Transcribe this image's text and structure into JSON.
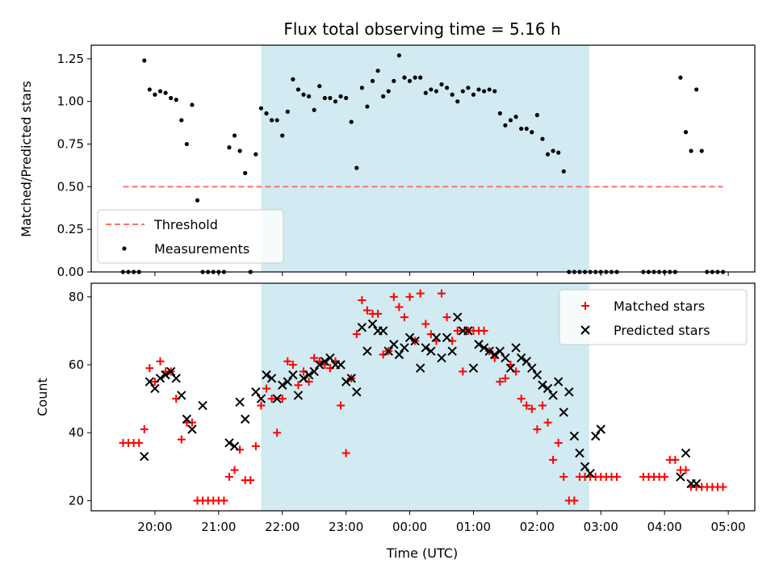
{
  "figure": {
    "title": "Flux total observing time = 5.16 h",
    "xlabel": "Time (UTC)",
    "x_ticks": [
      "20:00",
      "21:00",
      "22:00",
      "23:00",
      "00:00",
      "01:00",
      "02:00",
      "03:00",
      "04:00",
      "05:00"
    ]
  },
  "chart_data": [
    {
      "type": "scatter",
      "panel": "top",
      "ylabel": "Matched/Predicted stars",
      "ylim": [
        0,
        1.33
      ],
      "y_ticks": [
        "0.00",
        "0.25",
        "0.50",
        "0.75",
        "1.00",
        "1.25"
      ],
      "xlim": [
        "19:00",
        "05:25"
      ],
      "observing_window": {
        "start": "21:40",
        "end": "02:49",
        "color": "#add8e6"
      },
      "legend": {
        "placement": "lower-left",
        "entries": [
          "Threshold",
          "Measurements"
        ]
      },
      "threshold": {
        "name": "Threshold",
        "value": 0.5,
        "x_range": [
          "19:30",
          "04:55"
        ],
        "color": "#ff6f6f",
        "style": "dashed"
      },
      "series": [
        {
          "name": "Measurements",
          "color": "#000000",
          "x": [
            "19:30",
            "19:35",
            "19:40",
            "19:45",
            "19:50",
            "19:55",
            "20:00",
            "20:05",
            "20:10",
            "20:15",
            "20:20",
            "20:25",
            "20:30",
            "20:35",
            "20:40",
            "20:45",
            "20:50",
            "20:55",
            "21:00",
            "21:05",
            "21:10",
            "21:15",
            "21:20",
            "21:25",
            "21:30",
            "21:35",
            "21:40",
            "21:45",
            "21:50",
            "21:55",
            "22:00",
            "22:05",
            "22:10",
            "22:15",
            "22:20",
            "22:25",
            "22:30",
            "22:35",
            "22:40",
            "22:45",
            "22:50",
            "22:55",
            "23:00",
            "23:05",
            "23:10",
            "23:15",
            "23:20",
            "23:25",
            "23:30",
            "23:35",
            "23:40",
            "23:45",
            "23:50",
            "23:55",
            "00:00",
            "00:05",
            "00:10",
            "00:15",
            "00:20",
            "00:25",
            "00:30",
            "00:35",
            "00:40",
            "00:45",
            "00:50",
            "00:55",
            "01:00",
            "01:05",
            "01:10",
            "01:15",
            "01:20",
            "01:25",
            "01:30",
            "01:35",
            "01:40",
            "01:45",
            "01:50",
            "01:55",
            "02:00",
            "02:05",
            "02:10",
            "02:15",
            "02:20",
            "02:25",
            "02:30",
            "02:35",
            "02:40",
            "02:45",
            "02:50",
            "02:55",
            "03:00",
            "03:05",
            "03:10",
            "03:15",
            "03:40",
            "03:45",
            "03:50",
            "03:55",
            "04:00",
            "04:05",
            "04:10",
            "04:15",
            "04:20",
            "04:25",
            "04:30",
            "04:35",
            "04:40",
            "04:45",
            "04:50",
            "04:55"
          ],
          "y": [
            0,
            0,
            0,
            0,
            1.24,
            1.07,
            1.04,
            1.06,
            1.05,
            1.02,
            1.01,
            0.89,
            0.75,
            0.98,
            0.42,
            0,
            0,
            0,
            0,
            0,
            0.73,
            0.8,
            0.71,
            0.58,
            0,
            0.69,
            0.96,
            0.93,
            0.89,
            0.89,
            0.8,
            0.94,
            1.13,
            1.07,
            1.04,
            1.03,
            0.95,
            1.09,
            1.02,
            1.02,
            1.0,
            1.03,
            1.02,
            0.88,
            0.61,
            1.08,
            0.97,
            1.12,
            1.18,
            1.03,
            1.06,
            1.12,
            1.27,
            1.14,
            1.12,
            1.14,
            1.14,
            1.05,
            1.07,
            1.06,
            1.1,
            1.08,
            1.04,
            1.0,
            1.06,
            1.08,
            1.04,
            1.07,
            1.06,
            1.07,
            1.06,
            0.93,
            0.86,
            0.89,
            0.91,
            0.84,
            0.84,
            0.82,
            0.92,
            0.78,
            0.69,
            0.71,
            0.7,
            0.59,
            0,
            0,
            0,
            0,
            0,
            0,
            0,
            0,
            0,
            0,
            0,
            0,
            0,
            0,
            0,
            0,
            0,
            1.14,
            0.82,
            0.71,
            1.07,
            0.71,
            0,
            0,
            0,
            0
          ]
        }
      ]
    },
    {
      "type": "scatter",
      "panel": "bottom",
      "ylabel": "Count",
      "ylim": [
        17,
        84
      ],
      "y_ticks": [
        "20",
        "40",
        "60",
        "80"
      ],
      "xlim": [
        "19:00",
        "05:25"
      ],
      "observing_window": {
        "start": "21:40",
        "end": "02:49",
        "color": "#add8e6"
      },
      "legend": {
        "placement": "upper-right",
        "entries": [
          "Matched stars",
          "Predicted stars"
        ]
      },
      "series": [
        {
          "name": "Matched stars",
          "marker": "plus",
          "color": "#ff0000",
          "x": [
            "19:30",
            "19:35",
            "19:40",
            "19:45",
            "19:50",
            "19:55",
            "20:00",
            "20:05",
            "20:10",
            "20:15",
            "20:20",
            "20:25",
            "20:30",
            "20:35",
            "20:40",
            "20:45",
            "20:50",
            "20:55",
            "21:00",
            "21:05",
            "21:10",
            "21:15",
            "21:20",
            "21:25",
            "21:30",
            "21:35",
            "21:40",
            "21:45",
            "21:50",
            "21:55",
            "22:00",
            "22:05",
            "22:10",
            "22:15",
            "22:20",
            "22:25",
            "22:30",
            "22:35",
            "22:40",
            "22:45",
            "22:50",
            "22:55",
            "23:00",
            "23:05",
            "23:10",
            "23:15",
            "23:20",
            "23:25",
            "23:30",
            "23:35",
            "23:40",
            "23:45",
            "23:50",
            "23:55",
            "00:00",
            "00:05",
            "00:10",
            "00:15",
            "00:20",
            "00:25",
            "00:30",
            "00:35",
            "00:40",
            "00:45",
            "00:50",
            "00:55",
            "01:00",
            "01:05",
            "01:10",
            "01:15",
            "01:20",
            "01:25",
            "01:30",
            "01:35",
            "01:40",
            "01:45",
            "01:50",
            "01:55",
            "02:00",
            "02:05",
            "02:10",
            "02:15",
            "02:20",
            "02:25",
            "02:30",
            "02:35",
            "02:40",
            "02:45",
            "02:50",
            "02:55",
            "03:00",
            "03:05",
            "03:10",
            "03:15",
            "03:40",
            "03:45",
            "03:50",
            "03:55",
            "04:00",
            "04:05",
            "04:10",
            "04:15",
            "04:20",
            "04:25",
            "04:30",
            "04:35",
            "04:40",
            "04:45",
            "04:50",
            "04:55"
          ],
          "y": [
            37,
            37,
            37,
            37,
            41,
            59,
            55,
            61,
            58,
            58,
            50,
            38,
            43,
            43,
            20,
            20,
            20,
            20,
            20,
            20,
            27,
            29,
            35,
            26,
            26,
            36,
            48,
            53,
            50,
            40,
            50,
            61,
            60,
            54,
            58,
            55,
            62,
            61,
            60,
            59,
            61,
            48,
            34,
            56,
            69,
            79,
            76,
            75,
            75,
            63,
            64,
            80,
            77,
            74,
            80,
            67,
            81,
            72,
            69,
            67,
            81,
            74,
            67,
            70,
            58,
            70,
            70,
            70,
            70,
            64,
            62,
            55,
            56,
            60,
            58,
            50,
            48,
            47,
            41,
            48,
            43,
            32,
            37,
            27,
            20,
            20,
            27,
            27,
            27,
            27,
            27,
            27,
            27,
            27,
            27,
            27,
            27,
            27,
            27,
            32,
            32,
            29,
            29,
            24,
            24,
            24,
            24,
            24,
            24,
            24
          ]
        },
        {
          "name": "Predicted stars",
          "marker": "x",
          "color": "#000000",
          "x": [
            "19:50",
            "19:55",
            "20:00",
            "20:05",
            "20:10",
            "20:15",
            "20:20",
            "20:25",
            "20:30",
            "20:35",
            "20:45",
            "21:10",
            "21:15",
            "21:20",
            "21:25",
            "21:35",
            "21:40",
            "21:45",
            "21:50",
            "21:55",
            "22:00",
            "22:05",
            "22:10",
            "22:15",
            "22:20",
            "22:25",
            "22:30",
            "22:35",
            "22:40",
            "22:45",
            "22:50",
            "22:55",
            "23:00",
            "23:05",
            "23:10",
            "23:15",
            "23:20",
            "23:25",
            "23:30",
            "23:35",
            "23:40",
            "23:45",
            "23:50",
            "23:55",
            "00:00",
            "00:05",
            "00:10",
            "00:15",
            "00:20",
            "00:25",
            "00:30",
            "00:35",
            "00:40",
            "00:45",
            "00:50",
            "00:55",
            "01:00",
            "01:05",
            "01:10",
            "01:15",
            "01:20",
            "01:25",
            "01:30",
            "01:35",
            "01:40",
            "01:45",
            "01:50",
            "01:55",
            "02:00",
            "02:05",
            "02:10",
            "02:15",
            "02:20",
            "02:25",
            "02:30",
            "02:35",
            "02:40",
            "02:45",
            "02:50",
            "02:55",
            "03:00",
            "04:15",
            "04:20",
            "04:25",
            "04:30"
          ],
          "y": [
            33,
            55,
            53,
            56,
            57,
            58,
            56,
            51,
            44,
            41,
            48,
            37,
            36,
            49,
            44,
            52,
            50,
            57,
            56,
            50,
            54,
            55,
            57,
            51,
            56,
            57,
            58,
            60,
            61,
            62,
            60,
            60,
            55,
            56,
            52,
            71,
            64,
            72,
            70,
            70,
            64,
            66,
            63,
            65,
            68,
            67,
            59,
            65,
            64,
            68,
            62,
            68,
            64,
            74,
            70,
            70,
            59,
            66,
            65,
            64,
            63,
            64,
            62,
            59,
            65,
            62,
            61,
            59,
            57,
            54,
            53,
            51,
            55,
            46,
            52,
            39,
            34,
            30,
            28,
            39,
            41,
            27,
            34,
            25,
            25
          ]
        }
      ]
    }
  ]
}
